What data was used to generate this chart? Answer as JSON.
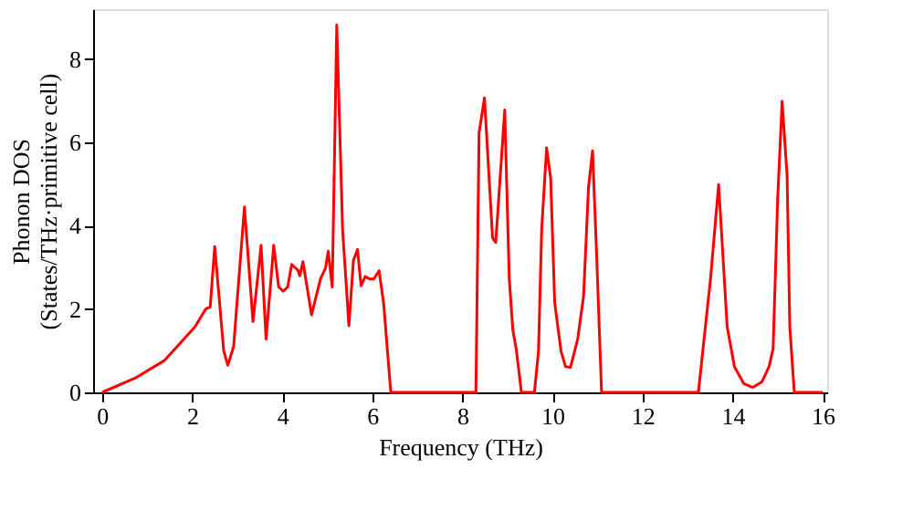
{
  "chart_data": {
    "type": "line",
    "xlabel": "Frequency (THz)",
    "ylabel": "Phonon DOS\n(States/THz·primitive cell)",
    "xlim": [
      -0.2,
      16.1
    ],
    "ylim": [
      0,
      9.2
    ],
    "xticks": [
      0,
      2,
      4,
      6,
      8,
      10,
      12,
      14,
      16
    ],
    "yticks": [
      0,
      2,
      4,
      6,
      8
    ],
    "grid": false,
    "legend": false,
    "series": [
      {
        "color": "#ff0000",
        "x": [
          0,
          0.73,
          1.39,
          2.06,
          2.3,
          2.4,
          2.5,
          2.7,
          2.79,
          2.92,
          3.16,
          3.35,
          3.53,
          3.64,
          3.81,
          3.92,
          4.02,
          4.12,
          4.21,
          4.35,
          4.39,
          4.46,
          4.65,
          4.85,
          4.96,
          5.02,
          5.11,
          5.21,
          5.34,
          5.48,
          5.58,
          5.67,
          5.75,
          5.84,
          5.95,
          6.03,
          6.15,
          6.25,
          6.41,
          8.3,
          8.37,
          8.49,
          8.67,
          8.74,
          8.94,
          9.04,
          9.12,
          9.2,
          9.31,
          9.6,
          9.69,
          9.76,
          9.87,
          9.96,
          10.05,
          10.19,
          10.29,
          10.4,
          10.56,
          10.69,
          10.8,
          10.89,
          10.98,
          11.09,
          13.24,
          13.41,
          13.51,
          13.69,
          13.88,
          14.04,
          14.25,
          14.45,
          14.65,
          14.81,
          14.9,
          15.0,
          15.1,
          15.21,
          15.27,
          15.37,
          16
        ],
        "values": [
          0,
          0.34,
          0.77,
          1.57,
          2.0,
          2.05,
          3.5,
          1.0,
          0.65,
          1.1,
          4.45,
          1.7,
          3.53,
          1.28,
          3.53,
          2.53,
          2.43,
          2.53,
          3.07,
          2.93,
          2.8,
          3.14,
          1.86,
          2.73,
          2.98,
          3.39,
          2.53,
          8.82,
          3.9,
          1.6,
          3.17,
          3.43,
          2.56,
          2.78,
          2.72,
          2.72,
          2.92,
          2.15,
          0,
          0,
          6.23,
          7.07,
          3.71,
          3.6,
          6.78,
          2.74,
          1.5,
          1.0,
          0,
          0,
          1.0,
          3.9,
          5.87,
          5.14,
          2.15,
          0.99,
          0.62,
          0.6,
          1.28,
          2.3,
          4.92,
          5.8,
          3.32,
          0,
          0,
          1.72,
          2.73,
          4.99,
          1.57,
          0.62,
          0.21,
          0.12,
          0.25,
          0.62,
          1.05,
          4.63,
          6.99,
          5.2,
          1.57,
          0,
          0
        ]
      }
    ]
  }
}
